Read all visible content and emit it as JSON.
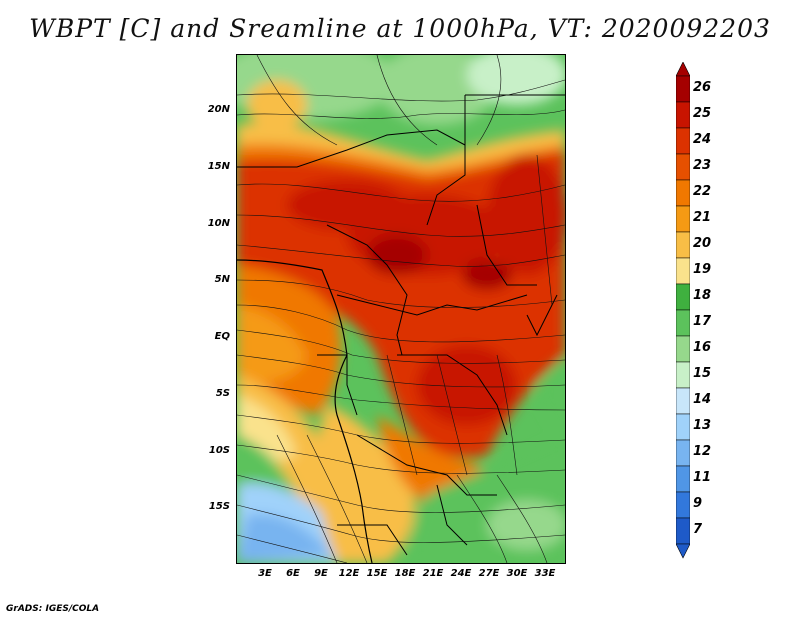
{
  "title": "WBPT [C] and Sreamline at 1000hPa, VT: 2020092203",
  "footer": "GrADS: IGES/COLA",
  "lat_labels": [
    "20N",
    "15N",
    "10N",
    "5N",
    "EQ",
    "5S",
    "10S",
    "15S"
  ],
  "lon_labels": [
    "3E",
    "6E",
    "9E",
    "12E",
    "15E",
    "18E",
    "21E",
    "24E",
    "27E",
    "30E",
    "33E"
  ],
  "colorbar": {
    "labels": [
      "26",
      "25",
      "24",
      "23",
      "22",
      "21",
      "20",
      "19",
      "18",
      "17",
      "16",
      "15",
      "14",
      "13",
      "12",
      "11",
      "9",
      "7"
    ],
    "colors": [
      "#a50000",
      "#c81400",
      "#dc3200",
      "#e65000",
      "#f07800",
      "#f59a14",
      "#f8be46",
      "#fae28c",
      "#3fb03f",
      "#5cc25c",
      "#96d88c",
      "#c8f0c8",
      "#c8e6fa",
      "#a0d2fa",
      "#78b4f0",
      "#5096e6",
      "#3278dc",
      "#1e5ac8"
    ]
  }
}
